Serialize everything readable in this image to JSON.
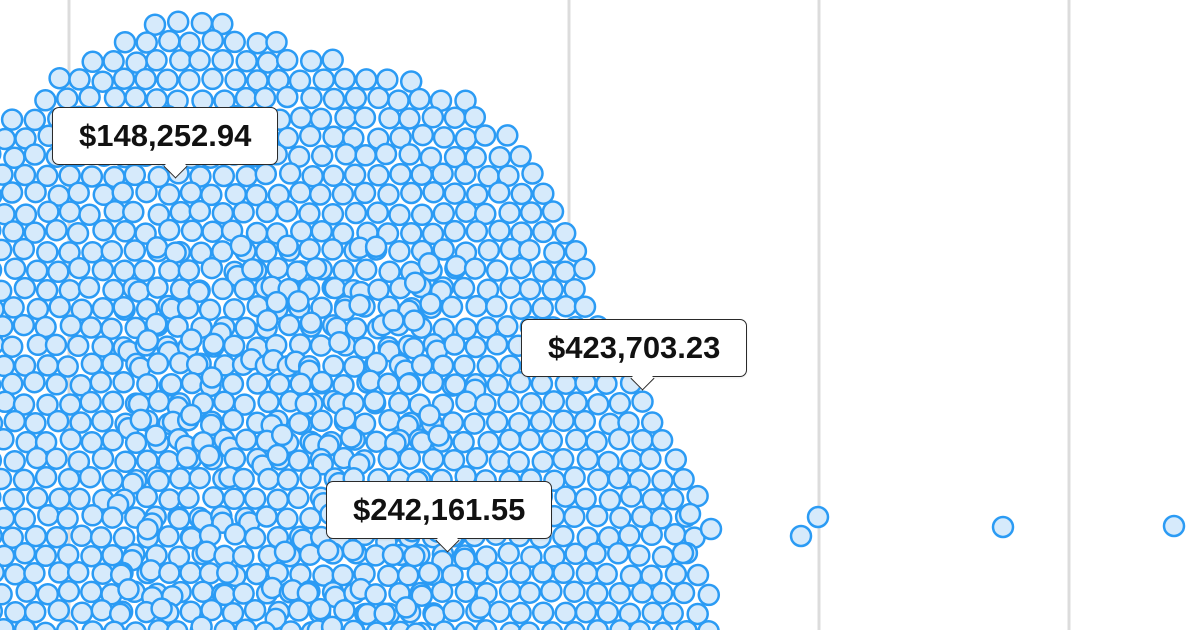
{
  "chart_data": {
    "type": "scatter",
    "style": "beeswarm",
    "colors": {
      "fill": "#d6eafb",
      "stroke": "#2b9bf4",
      "grid": "#dcdcdc"
    },
    "grid": true,
    "tooltips": [
      {
        "label": "$148,252.94",
        "value": 148252.94
      },
      {
        "label": "$423,703.23",
        "value": 423703.23
      },
      {
        "label": "$242,161.55",
        "value": 242161.55
      }
    ]
  }
}
